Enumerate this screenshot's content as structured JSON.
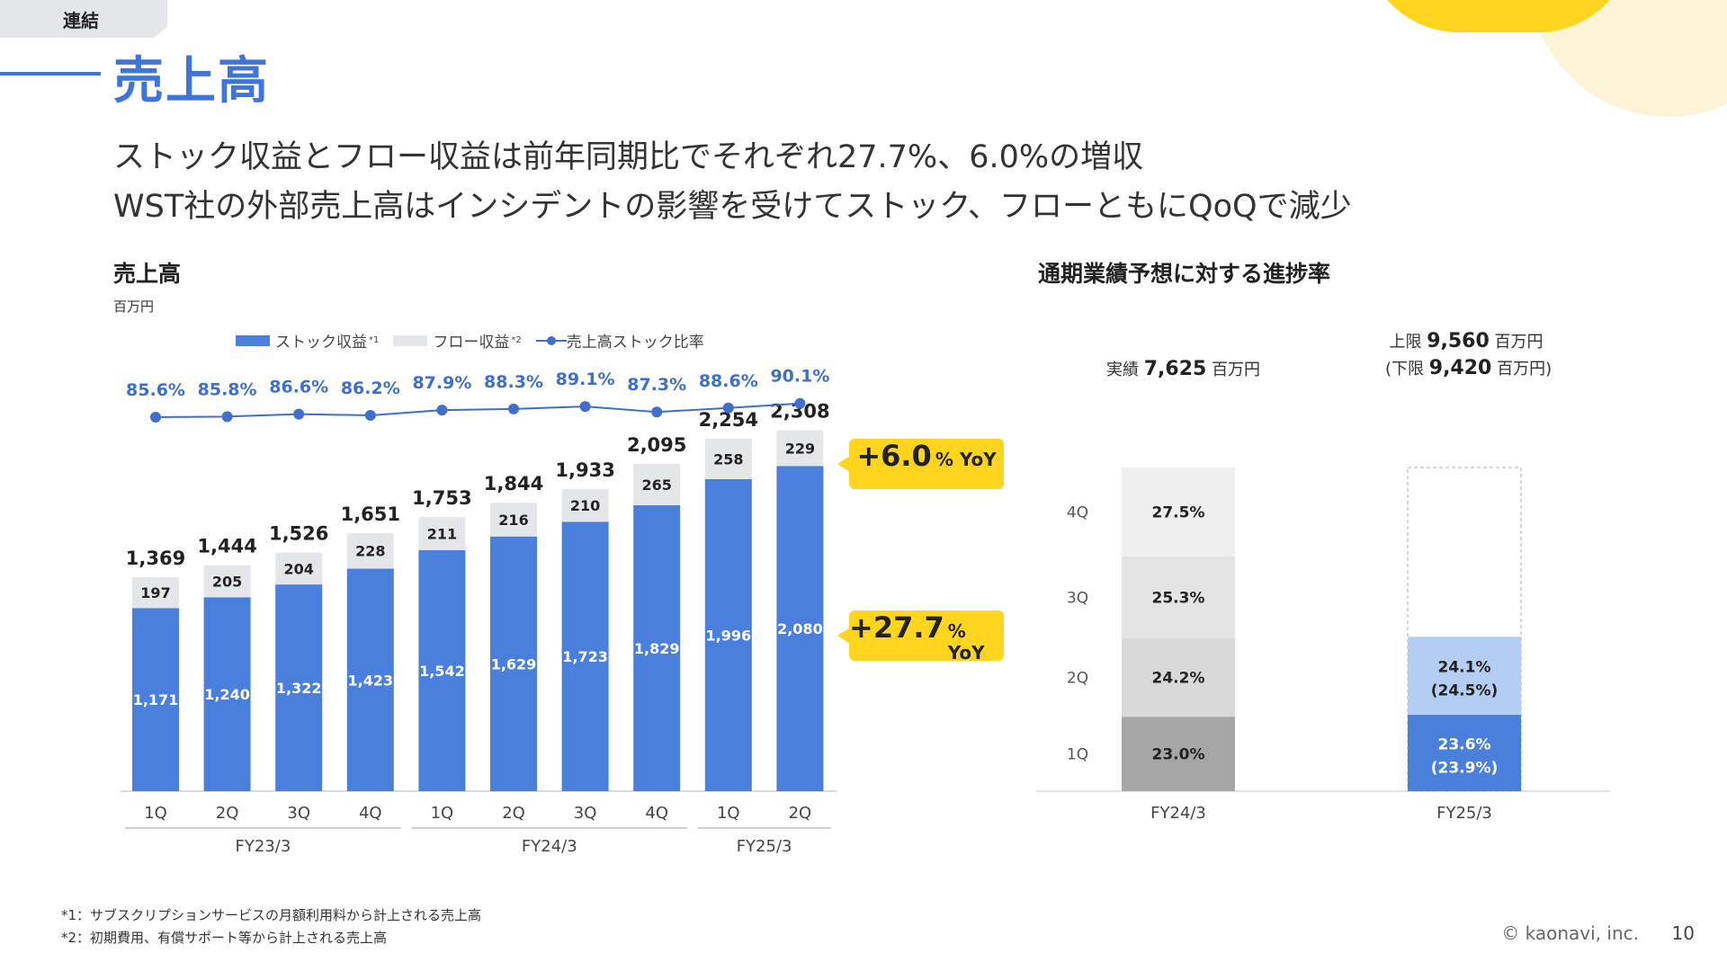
{
  "tag": "連結",
  "page_title": "売上高",
  "headlines": [
    "ストック収益とフロー収益は前年同期比でそれぞれ27.7%、6.0%の増収",
    "WST社の外部売上高はインシデントの影響を受けてストック、フローともにQoQで減少"
  ],
  "left_section": {
    "title": "売上高",
    "unit": "百万円",
    "legend": {
      "stock": "ストック収益",
      "stock_note": "*1",
      "flow": "フロー収益",
      "flow_note": "*2",
      "ratio": "売上高ストック比率"
    },
    "callouts": {
      "flow": {
        "value": "+6.0",
        "suffix": "% YoY"
      },
      "stock": {
        "value": "+27.7",
        "suffix": "% YoY"
      }
    }
  },
  "right_section": {
    "title": "通期業績予想に対する進捗率",
    "fy24_label": {
      "prefix": "実績",
      "value": "7,625",
      "unit": "百万円"
    },
    "fy25_upper": {
      "prefix": "上限",
      "value": "9,560",
      "unit": "百万円"
    },
    "fy25_lower": {
      "prefix": "(下限",
      "value": "9,420",
      "unit": "百万円)"
    }
  },
  "chart_data": [
    {
      "type": "bar",
      "stacked": true,
      "categories": [
        "1Q",
        "2Q",
        "3Q",
        "4Q",
        "1Q",
        "2Q",
        "3Q",
        "4Q",
        "1Q",
        "2Q"
      ],
      "groups": [
        {
          "label": "FY23/3",
          "count": 4
        },
        {
          "label": "FY24/3",
          "count": 4
        },
        {
          "label": "FY25/3",
          "count": 2
        }
      ],
      "series": [
        {
          "name": "ストック収益",
          "color": "#4a7fdc",
          "values": [
            1171,
            1240,
            1322,
            1423,
            1542,
            1629,
            1723,
            1829,
            1996,
            2080
          ]
        },
        {
          "name": "フロー収益",
          "color": "#e4e6ea",
          "values": [
            197,
            205,
            204,
            228,
            211,
            216,
            210,
            265,
            258,
            229
          ]
        }
      ],
      "totals": [
        1369,
        1444,
        1526,
        1651,
        1753,
        1844,
        1933,
        2095,
        2254,
        2308
      ],
      "total_labels": [
        "1,369",
        "1,444",
        "1,526",
        "1,651",
        "1,753",
        "1,844",
        "1,933",
        "2,095",
        "2,254",
        "2,308"
      ],
      "stock_labels": [
        "1,171",
        "1,240",
        "1,322",
        "1,423",
        "1,542",
        "1,629",
        "1,723",
        "1,829",
        "1,996",
        "2,080"
      ],
      "flow_labels": [
        "197",
        "205",
        "204",
        "228",
        "211",
        "216",
        "210",
        "265",
        "258",
        "229"
      ],
      "line_series": {
        "name": "売上高ストック比率",
        "color": "#3f6fc8",
        "values": [
          85.6,
          85.8,
          86.6,
          86.2,
          87.9,
          88.3,
          89.1,
          87.3,
          88.6,
          90.1
        ],
        "labels": [
          "85.6%",
          "85.8%",
          "86.6%",
          "86.2%",
          "87.9%",
          "88.3%",
          "89.1%",
          "87.3%",
          "88.6%",
          "90.1%"
        ]
      },
      "ylabel": "百万円",
      "ylim": [
        0,
        2400
      ]
    },
    {
      "type": "bar",
      "stacked": true,
      "categories": [
        "FY24/3",
        "FY25/3"
      ],
      "row_labels": [
        "1Q",
        "2Q",
        "3Q",
        "4Q"
      ],
      "fy24": {
        "values": [
          23.0,
          24.2,
          25.3,
          27.5
        ],
        "labels": [
          "23.0%",
          "24.2%",
          "25.3%",
          "27.5%"
        ],
        "colors": [
          "#a6a6a6",
          "#d9d9d9",
          "#e4e4e4",
          "#efefef"
        ]
      },
      "fy25": {
        "values": [
          23.6,
          24.1
        ],
        "labels": [
          "23.6%",
          "24.1%"
        ],
        "lower_labels": [
          "(23.9%)",
          "(24.5%)"
        ],
        "colors": [
          "#4a7fdc",
          "#b4cdf3"
        ]
      },
      "ylim": [
        0,
        100
      ]
    }
  ],
  "footnotes": [
    "*1：サブスクリプションサービスの月額利用料から計上される売上高",
    "*2：初期費用、有償サポート等から計上される売上高"
  ],
  "copyright": "© kaonavi, inc.",
  "page_number": "10"
}
